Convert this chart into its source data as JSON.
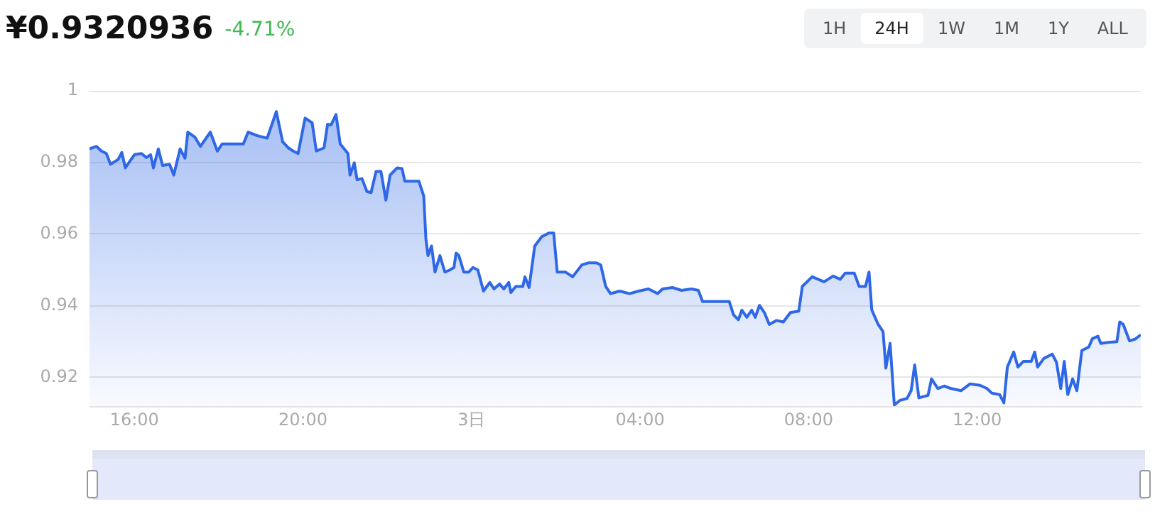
{
  "chart_data": {
    "type": "area",
    "title": "¥0.9320936",
    "subtitle": "-4.71%",
    "annotations": [
      "1H",
      "24H",
      "1W",
      "1M",
      "1Y",
      "ALL"
    ],
    "xlim": [
      "--01-02T14:56",
      "--01-03T15:53"
    ],
    "ylim": [
      0.912,
      1
    ],
    "xticks": [
      {
        "value": "--01-02T16:00",
        "label": "16:00"
      },
      {
        "value": "--01-02T20:00",
        "label": "20:00"
      },
      {
        "value": "--01-03T00:00",
        "label": "3日"
      },
      {
        "value": "--01-03T04:00",
        "label": "04:00"
      },
      {
        "value": "--01-03T08:00",
        "label": "08:00"
      },
      {
        "value": "--01-03T12:00",
        "label": "12:00"
      }
    ],
    "yticks": [
      0.92,
      0.94,
      0.96,
      0.98,
      1
    ],
    "grid": "y",
    "legend": false,
    "marker": "none",
    "line_style": "solid",
    "series": [
      {
        "color": "#2f68e6",
        "x": [
          "--01-02T14:56",
          "--01-02T15:06",
          "--01-02T15:13",
          "--01-02T15:20",
          "--01-02T15:26",
          "--01-02T15:37",
          "--01-02T15:42",
          "--01-02T15:47",
          "--01-02T16:00",
          "--01-02T16:10",
          "--01-02T16:17",
          "--01-02T16:23",
          "--01-02T16:27",
          "--01-02T16:34",
          "--01-02T16:40",
          "--01-02T16:50",
          "--01-02T16:56",
          "--01-02T17:05",
          "--01-02T17:12",
          "--01-02T17:16",
          "--01-02T17:26",
          "--01-02T17:34",
          "--01-02T17:48",
          "--01-02T17:58",
          "--01-02T18:05",
          "--01-02T18:18",
          "--01-02T18:35",
          "--01-02T18:42",
          "--01-02T18:55",
          "--01-02T19:09",
          "--01-02T19:22",
          "--01-02T19:31",
          "--01-02T19:39",
          "--01-02T19:46",
          "--01-02T19:53",
          "--01-02T20:03",
          "--01-02T20:13",
          "--01-02T20:19",
          "--01-02T20:30",
          "--01-02T20:35",
          "--01-02T20:40",
          "--01-02T20:47",
          "--01-02T20:53",
          "--01-02T21:04",
          "--01-02T21:07",
          "--01-02T21:13",
          "--01-02T21:17",
          "--01-02T21:24",
          "--01-02T21:31",
          "--01-02T21:37",
          "--01-02T21:44",
          "--01-02T21:51",
          "--01-02T21:58",
          "--01-02T22:04",
          "--01-02T22:14",
          "--01-02T22:21",
          "--01-02T22:25",
          "--01-02T22:35",
          "--01-02T22:45",
          "--01-02T22:52",
          "--01-02T22:55",
          "--01-02T22:58",
          "--01-02T23:03",
          "--01-02T23:08",
          "--01-02T23:15",
          "--01-02T23:22",
          "--01-02T23:29",
          "--01-02T23:35",
          "--01-02T23:38",
          "--01-02T23:42",
          "--01-02T23:49",
          "--01-02T23:56",
          "--01-03T00:02",
          "--01-03T00:09",
          "--01-03T00:17",
          "--01-03T00:26",
          "--01-03T00:32",
          "--01-03T00:40",
          "--01-03T00:46",
          "--01-03T00:53",
          "--01-03T00:56",
          "--01-03T01:03",
          "--01-03T01:13",
          "--01-03T01:16",
          "--01-03T01:22",
          "--01-03T01:30",
          "--01-03T01:40",
          "--01-03T01:50",
          "--01-03T01:57",
          "--01-03T02:02",
          "--01-03T02:14",
          "--01-03T02:24",
          "--01-03T02:37",
          "--01-03T02:47",
          "--01-03T02:58",
          "--01-03T03:04",
          "--01-03T03:11",
          "--01-03T03:18",
          "--01-03T03:31",
          "--01-03T03:45",
          "--01-03T03:58",
          "--01-03T04:12",
          "--01-03T04:25",
          "--01-03T04:32",
          "--01-03T04:46",
          "--01-03T04:59",
          "--01-03T05:13",
          "--01-03T05:23",
          "--01-03T05:29",
          "--01-03T06:07",
          "--01-03T06:13",
          "--01-03T06:20",
          "--01-03T06:25",
          "--01-03T06:32",
          "--01-03T06:39",
          "--01-03T06:44",
          "--01-03T06:50",
          "--01-03T06:57",
          "--01-03T07:04",
          "--01-03T07:14",
          "--01-03T07:24",
          "--01-03T07:34",
          "--01-03T07:46",
          "--01-03T07:51",
          "--01-03T08:05",
          "--01-03T08:22",
          "--01-03T08:35",
          "--01-03T08:45",
          "--01-03T08:52",
          "--01-03T09:05",
          "--01-03T09:12",
          "--01-03T09:21",
          "--01-03T09:26",
          "--01-03T09:30",
          "--01-03T09:39",
          "--01-03T09:46",
          "--01-03T09:50",
          "--01-03T09:56",
          "--01-03T10:02",
          "--01-03T10:10",
          "--01-03T10:20",
          "--01-03T10:26",
          "--01-03T10:31",
          "--01-03T10:37",
          "--01-03T10:50",
          "--01-03T10:55",
          "--01-03T11:04",
          "--01-03T11:13",
          "--01-03T11:23",
          "--01-03T11:37",
          "--01-03T11:50",
          "--01-03T12:04",
          "--01-03T12:14",
          "--01-03T12:21",
          "--01-03T12:32",
          "--01-03T12:38",
          "--01-03T12:43",
          "--01-03T12:52",
          "--01-03T12:58",
          "--01-03T13:06",
          "--01-03T13:17",
          "--01-03T13:22",
          "--01-03T13:26",
          "--01-03T13:35",
          "--01-03T13:47",
          "--01-03T13:53",
          "--01-03T13:59",
          "--01-03T14:04",
          "--01-03T14:09",
          "--01-03T14:16",
          "--01-03T14:22",
          "--01-03T14:29",
          "--01-03T14:39",
          "--01-03T14:44",
          "--01-03T14:52",
          "--01-03T14:56",
          "--01-03T15:07",
          "--01-03T15:19",
          "--01-03T15:23",
          "--01-03T15:28",
          "--01-03T15:37",
          "--01-03T15:45",
          "--01-03T15:53"
        ],
        "values": [
          0.9838,
          0.9845,
          0.9832,
          0.9825,
          0.9795,
          0.9809,
          0.9828,
          0.9785,
          0.9822,
          0.9825,
          0.9814,
          0.9822,
          0.9785,
          0.9838,
          0.9792,
          0.9795,
          0.9765,
          0.9838,
          0.9812,
          0.9885,
          0.9871,
          0.9845,
          0.9885,
          0.9832,
          0.9852,
          0.9852,
          0.9852,
          0.9885,
          0.9875,
          0.9868,
          0.9942,
          0.9858,
          0.9841,
          0.9832,
          0.9825,
          0.9924,
          0.9911,
          0.9832,
          0.9841,
          0.9907,
          0.9905,
          0.9934,
          0.9852,
          0.9825,
          0.9765,
          0.9799,
          0.9752,
          0.9755,
          0.9719,
          0.9716,
          0.9775,
          0.9775,
          0.9695,
          0.9765,
          0.9785,
          0.9783,
          0.9748,
          0.9748,
          0.9748,
          0.9706,
          0.9587,
          0.954,
          0.9567,
          0.9494,
          0.954,
          0.9494,
          0.95,
          0.9507,
          0.9547,
          0.954,
          0.9494,
          0.9494,
          0.9507,
          0.95,
          0.9441,
          0.9465,
          0.9447,
          0.9461,
          0.9447,
          0.9465,
          0.9437,
          0.9454,
          0.9454,
          0.9481,
          0.9451,
          0.9567,
          0.9593,
          0.9603,
          0.9603,
          0.9494,
          0.9494,
          0.9481,
          0.9514,
          0.952,
          0.952,
          0.9514,
          0.9454,
          0.9434,
          0.9441,
          0.9434,
          0.9441,
          0.9447,
          0.9434,
          0.9447,
          0.9451,
          0.9443,
          0.9447,
          0.9443,
          0.9412,
          0.9412,
          0.9375,
          0.9361,
          0.9388,
          0.9368,
          0.9388,
          0.9368,
          0.9401,
          0.9381,
          0.9348,
          0.9359,
          0.9355,
          0.9381,
          0.9385,
          0.9454,
          0.9481,
          0.9467,
          0.9483,
          0.9474,
          0.9491,
          0.9491,
          0.9454,
          0.9454,
          0.9494,
          0.9388,
          0.9348,
          0.9328,
          0.9226,
          0.9295,
          0.9123,
          0.9136,
          0.9141,
          0.9163,
          0.9235,
          0.9143,
          0.915,
          0.9196,
          0.9169,
          0.9176,
          0.9169,
          0.9163,
          0.9182,
          0.9178,
          0.9169,
          0.9156,
          0.9152,
          0.9129,
          0.9229,
          0.9271,
          0.9229,
          0.9245,
          0.9245,
          0.9271,
          0.9229,
          0.9253,
          0.9265,
          0.9242,
          0.9169,
          0.9245,
          0.9152,
          0.9196,
          0.9163,
          0.9275,
          0.9285,
          0.9308,
          0.9315,
          0.9295,
          0.9298,
          0.93,
          0.9355,
          0.9348,
          0.9302,
          0.9307,
          0.9319
        ]
      }
    ]
  }
}
